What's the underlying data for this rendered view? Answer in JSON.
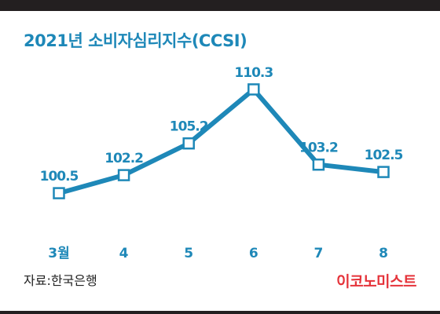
{
  "title": "2021년 소비자심리지수(CCSI)",
  "source": "자료:한국은행",
  "brand": "이코노미스트",
  "colors": {
    "accent": "#1e88b8",
    "brand": "#e5333a",
    "frame": "#231f20"
  },
  "chart_data": {
    "type": "line",
    "title": "2021년 소비자심리지수(CCSI)",
    "categories": [
      "3월",
      "4",
      "5",
      "6",
      "7",
      "8"
    ],
    "series": [
      {
        "values": [
          100.5,
          102.2,
          105.2,
          110.3,
          103.2,
          102.5
        ],
        "labels": [
          "100.5",
          "102.2",
          "105.2",
          "110.3",
          "103.2",
          "102.5"
        ]
      }
    ],
    "ylim": [
      96.5,
      114.3
    ],
    "xlabel": "",
    "ylabel": "",
    "grid": false,
    "legend": "none",
    "marker": "square-hollow"
  }
}
